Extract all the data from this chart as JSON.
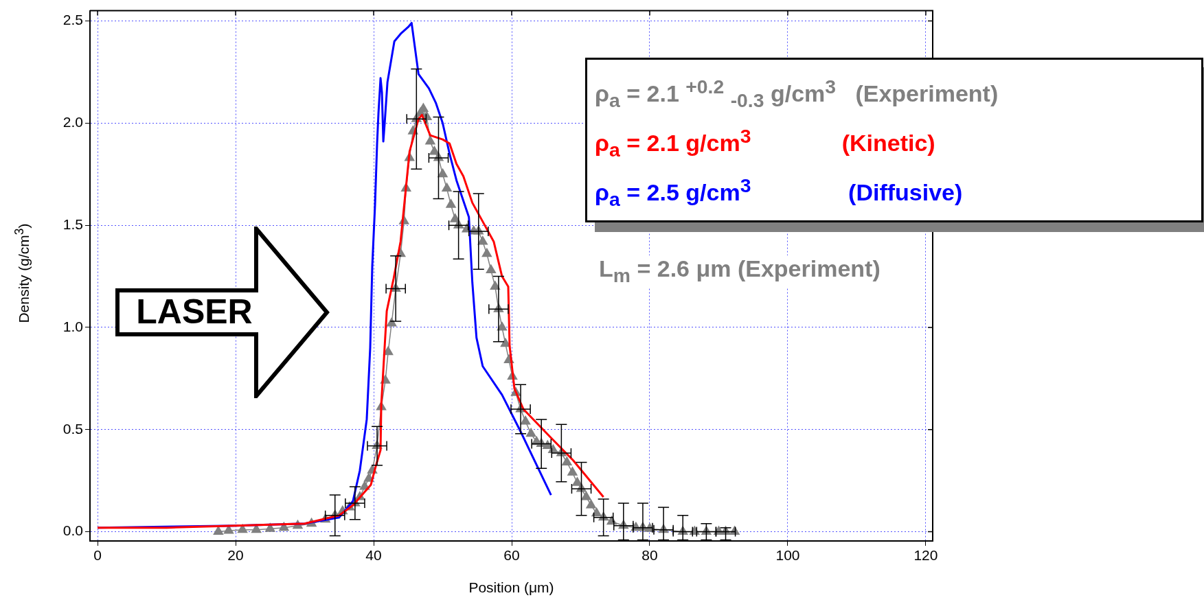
{
  "chart_data": {
    "type": "line",
    "xlabel": "Position (μm)",
    "ylabel": "Density (g/cm$^{3}$)",
    "xlim": [
      -1.1,
      121
    ],
    "xticks": [
      0,
      20,
      40,
      60,
      80,
      100,
      120
    ],
    "ylim": [
      -0.045,
      2.55
    ],
    "yticks": [
      {
        "value": 0,
        "label": "0.0"
      },
      0.5,
      {
        "value": 1,
        "label": "1.0"
      },
      1.5,
      {
        "value": 2,
        "label": "2.0"
      },
      2.5
    ],
    "grid": true,
    "legend": "top right",
    "marker": "none",
    "annotations": [
      "L$_{m}$ = 2.6 μm (Experiment)",
      "LASER"
    ],
    "series": [
      {
        "name": "ρ$_{a}$ = 2.1 $^{+0.2}$ $_{-0.3}$ g/cm$^{3}$   (Experiment)",
        "color": "#808080",
        "marker": "triangle",
        "x": [
          17.5,
          19,
          21,
          23,
          25,
          27,
          29,
          31,
          33,
          34.4,
          35.5,
          36.5,
          37.3,
          38,
          38.7,
          39.3,
          39.8,
          40.5,
          41.1,
          41.7,
          42.1,
          42.6,
          43.2,
          43.9,
          44.4,
          44.7,
          45.2,
          45.7,
          46.2,
          46.8,
          47.2,
          47.7,
          48.2,
          48.8,
          49.4,
          50,
          50.6,
          51.2,
          51.8,
          52.3,
          53.5,
          54.5,
          55.2,
          55.8,
          56.4,
          57,
          57.6,
          58.1,
          58.6,
          59.1,
          59.6,
          60.1,
          60.6,
          61.3,
          62,
          62.8,
          63.6,
          64.3,
          65.2,
          66,
          67.2,
          68,
          68.8,
          69.5,
          70.1,
          70.8,
          71.5,
          72.3,
          73.3,
          74.5,
          76.2,
          78,
          79,
          80,
          82,
          84.8,
          86.5,
          88.2,
          90,
          91,
          92.3
        ],
        "values": [
          0,
          0.005,
          0.01,
          0.01,
          0.015,
          0.02,
          0.03,
          0.04,
          0.06,
          0.08,
          0.1,
          0.12,
          0.14,
          0.17,
          0.22,
          0.26,
          0.3,
          0.42,
          0.61,
          0.74,
          0.88,
          1.02,
          1.19,
          1.36,
          1.52,
          1.68,
          1.83,
          1.96,
          2.02,
          2.05,
          2.07,
          2.03,
          1.91,
          1.86,
          1.83,
          1.75,
          1.68,
          1.6,
          1.53,
          1.5,
          1.48,
          1.47,
          1.47,
          1.42,
          1.36,
          1.28,
          1.2,
          1.09,
          1,
          0.92,
          0.84,
          0.76,
          0.68,
          0.6,
          0.54,
          0.48,
          0.44,
          0.43,
          0.42,
          0.4,
          0.385,
          0.34,
          0.29,
          0.24,
          0.21,
          0.17,
          0.13,
          0.09,
          0.07,
          0.05,
          0.03,
          0.02,
          0.02,
          0.015,
          0.01,
          0,
          0,
          0,
          0,
          0,
          0
        ],
        "errors": [
          null,
          null,
          null,
          null,
          null,
          null,
          null,
          null,
          null,
          0.1,
          null,
          null,
          0.08,
          null,
          null,
          null,
          null,
          0.095,
          null,
          null,
          null,
          null,
          0.16,
          null,
          null,
          null,
          null,
          null,
          0.245,
          null,
          null,
          null,
          null,
          null,
          0.2,
          null,
          null,
          null,
          null,
          0.165,
          null,
          null,
          0.185,
          null,
          null,
          null,
          null,
          0.16,
          null,
          null,
          null,
          null,
          null,
          0.12,
          null,
          null,
          null,
          0.12,
          null,
          null,
          0.14,
          null,
          null,
          null,
          0.13,
          null,
          null,
          null,
          0.09,
          null,
          [
            -0.04,
            0.14
          ],
          null,
          [
            -0.04,
            0.14
          ],
          null,
          [
            -0.04,
            0.12
          ],
          [
            -0.04,
            0.08
          ],
          null,
          [
            -0.04,
            0.04
          ],
          null,
          [
            -0.04,
            0.02
          ],
          null
        ],
        "xerrors": [
          null,
          null,
          null,
          null,
          null,
          null,
          null,
          null,
          null,
          1.4,
          null,
          null,
          1.4,
          null,
          null,
          null,
          null,
          1.4,
          null,
          null,
          null,
          null,
          1.4,
          null,
          null,
          null,
          null,
          null,
          1.4,
          null,
          null,
          null,
          null,
          null,
          1.4,
          null,
          null,
          null,
          null,
          1.4,
          null,
          null,
          1.4,
          null,
          null,
          null,
          null,
          1.4,
          null,
          null,
          null,
          null,
          null,
          1.4,
          null,
          null,
          null,
          1.4,
          null,
          null,
          1.4,
          null,
          null,
          null,
          1.4,
          null,
          null,
          null,
          1.4,
          null,
          1.4,
          null,
          1.4,
          null,
          1.4,
          1.4,
          null,
          1.4,
          null,
          1.4,
          null
        ]
      },
      {
        "name": "ρ$_{a}$ = 2.1 g/cm$^{3}$              (Kinetic)",
        "color": "#ff0000",
        "x": [
          0,
          10,
          20,
          30,
          35,
          37,
          39.6,
          40.3,
          41,
          41.1,
          41.9,
          42.9,
          43.9,
          45.2,
          46.5,
          47,
          48.2,
          50,
          51,
          52,
          53,
          54.3,
          56.1,
          57.4,
          58.6,
          59.5,
          59.7,
          60.4,
          61.7,
          65.7,
          68.9,
          73.3
        ],
        "values": [
          0.02,
          0.02,
          0.03,
          0.04,
          0.08,
          0.13,
          0.23,
          0.32,
          0.4,
          0.62,
          1.08,
          1.24,
          1.42,
          1.86,
          2.02,
          2.04,
          1.94,
          1.92,
          1.9,
          1.8,
          1.74,
          1.61,
          1.5,
          1.42,
          1.25,
          1.2,
          0.91,
          0.7,
          0.6,
          0.46,
          0.35,
          0.17
        ]
      },
      {
        "name": "ρ$_{a}$ = 2.5 g/cm$^{3}$               (Diffusive)",
        "color": "#0000ff",
        "x": [
          0,
          20,
          30,
          35,
          37,
          38,
          39,
          39.5,
          39.8,
          40.2,
          40.5,
          40.7,
          41,
          41.2,
          41.4,
          41.6,
          42,
          43,
          44,
          45,
          45.5,
          46.5,
          48,
          49,
          50,
          51,
          52,
          53.8,
          54.3,
          54.9,
          55.8,
          58.6,
          61.3,
          65.7
        ],
        "values": [
          0.02,
          0.03,
          0.04,
          0.07,
          0.15,
          0.3,
          0.55,
          0.9,
          1.3,
          1.6,
          1.9,
          2.05,
          2.22,
          2.15,
          1.91,
          2.0,
          2.2,
          2.4,
          2.44,
          2.47,
          2.49,
          2.24,
          2.17,
          2.1,
          2,
          1.85,
          1.72,
          1.54,
          1.22,
          0.95,
          0.81,
          0.67,
          0.49,
          0.18
        ]
      }
    ]
  }
}
